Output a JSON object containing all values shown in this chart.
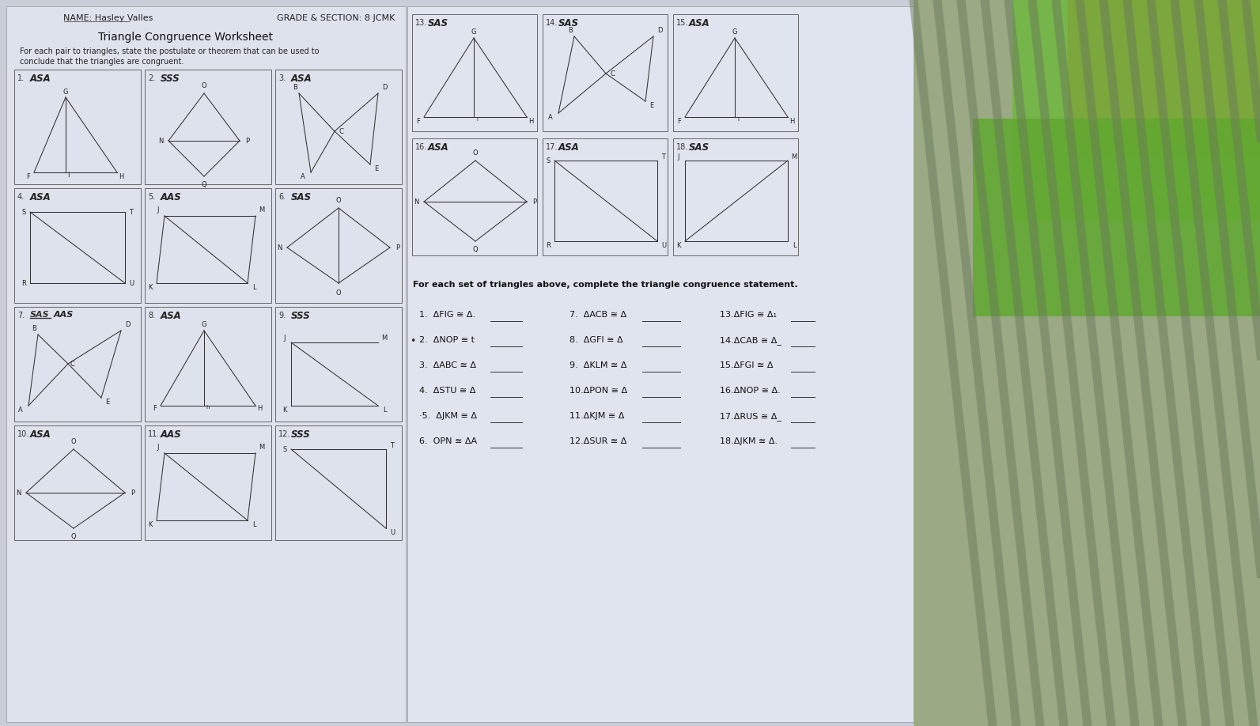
{
  "bg_left": "#c8cdd8",
  "bg_right_fabric": "#8a9e7a",
  "paper_color": "#dde2ec",
  "paper_color2": "#e2e6f0",
  "title": "Triangle Congruence Worksheet",
  "subtitle1": "For each pair to triangles, state the postulate or theorem that can be used to",
  "subtitle2": "conclude that the triangles are congruent.",
  "section2_header": "For each set of triangles above, complete the triangle congruence statement.",
  "left_labels": [
    [
      "1. ASA",
      "2. SSS",
      "3. ASA"
    ],
    [
      "4. ASA",
      "5. AAS",
      "6. SAS"
    ],
    [
      "7. SAS AAS",
      "8. ASA",
      "9. SSS"
    ],
    [
      "10. ASA",
      "11. AAS",
      "12. SSS"
    ]
  ],
  "right_labels": [
    [
      "13. SAS",
      "14. SAS",
      "15. ASA"
    ],
    [
      "16. ASA",
      "17. ASA",
      "18. SAS"
    ]
  ],
  "col1_stmts": [
    "1.  ΔFIG ≅ Δ.",
    "2.  ΔNOP ≅ t",
    "3.  ΔABC ≅ Δ",
    "4.  ΔSTU ≅ Δ",
    "·5.  ΔJKM ≅ Δ",
    "6.  ΟPN ≅ ΔA"
  ],
  "col2_stmts": [
    "7.  ΔACB ≅ Δ",
    "8.  ΔGFI ≅ Δ",
    "9.  ΔKLM ≅ Δ",
    "10.ΔPON ≅ Δ",
    "11.ΔKJM ≅ Δ",
    "12.ΔSUR ≅ Δ"
  ],
  "col3_stmts": [
    "13.ΔFIG ≅ Δ₁",
    "14.ΔCAB ≅ Δ_",
    "15.ΔFGI ≅ Δ",
    "16.ΔNOP ≅ Δ.",
    "17.ΔRUS ≅ Δ_",
    "18.ΔJKM ≅ Δ."
  ]
}
